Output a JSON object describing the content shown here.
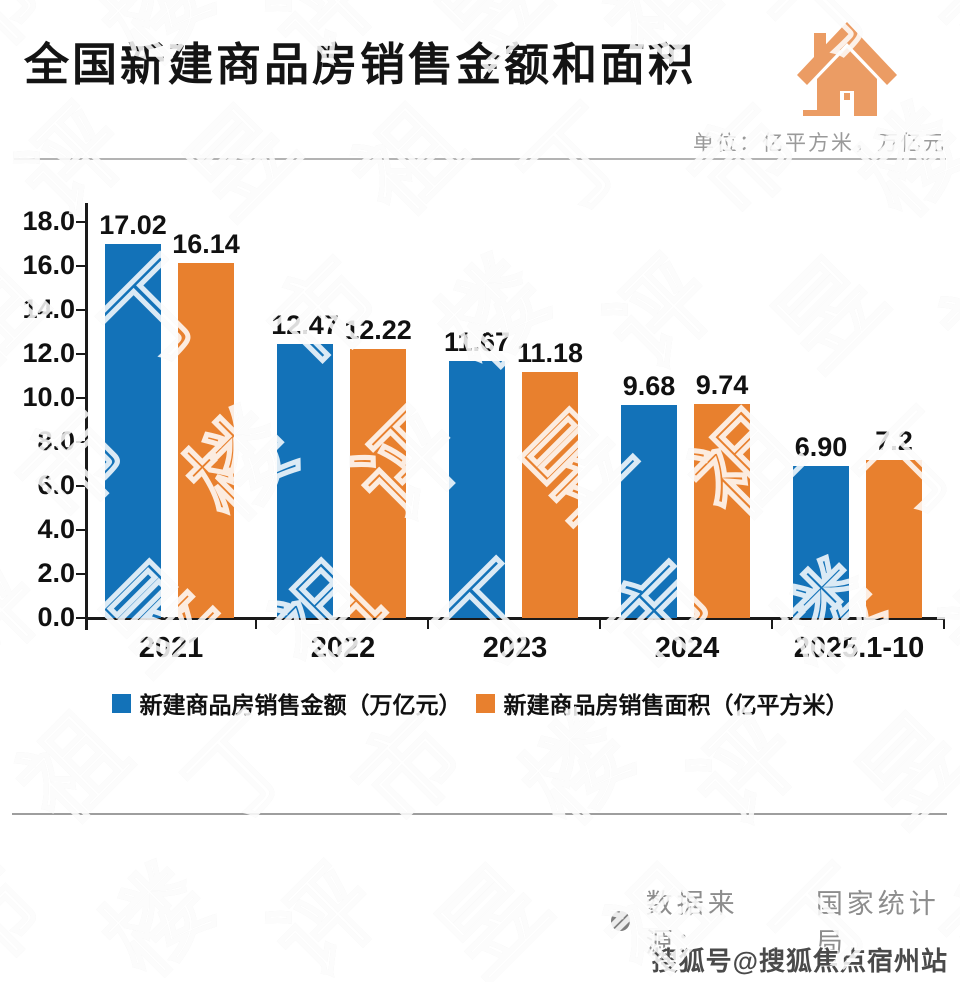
{
  "header": {
    "title": "全国新建商品房销售金额和面积",
    "unit_label": "单位：亿平方米，万亿元"
  },
  "chart_data": {
    "type": "bar",
    "title": "全国新建商品房销售金额和面积",
    "categories": [
      "2021",
      "2022",
      "2023",
      "2024",
      "2025.1-10"
    ],
    "series": [
      {
        "name": "新建商品房销售金额（万亿元）",
        "color": "#1372B8",
        "values": [
          17.02,
          12.47,
          11.67,
          9.68,
          6.9
        ],
        "value_labels": [
          "17.02",
          "12.47",
          "11.67",
          "9.68",
          "6.90"
        ]
      },
      {
        "name": "新建商品房销售面积（亿平方米）",
        "color": "#E8802E",
        "values": [
          16.14,
          12.22,
          11.18,
          9.74,
          7.2
        ],
        "value_labels": [
          "16.14",
          "12.22",
          "11.18",
          "9.74",
          "7.2"
        ]
      }
    ],
    "ylim": [
      0,
      18
    ],
    "ytick_step": 2,
    "ytick_format": "one_decimal",
    "grid": false,
    "legend_position": "bottom"
  },
  "source": {
    "label": "数据来源：",
    "value": "国家统计局"
  },
  "footer": {
    "credit": "搜狐号@搜狐焦点宿州站"
  },
  "watermark": {
    "chars": [
      "市",
      "楼",
      "评",
      "昱",
      "祖",
      "丁"
    ]
  },
  "colors": {
    "bar_blue": "#1372B8",
    "bar_orange": "#E8802E",
    "house_icon": "#EB9C64",
    "axis": "#1a1a1a"
  }
}
